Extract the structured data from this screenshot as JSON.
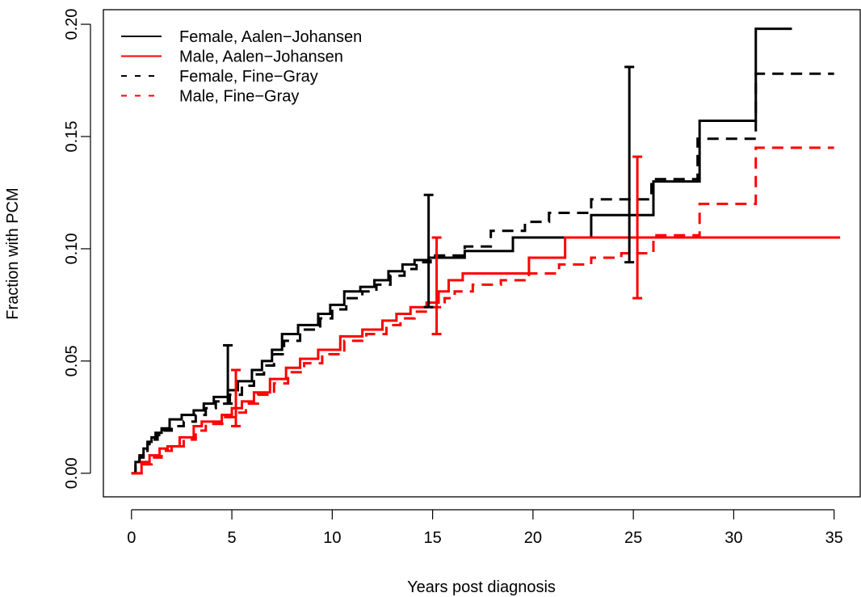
{
  "chart_data": {
    "type": "line",
    "step": true,
    "title": "",
    "xlabel": "Years post diagnosis",
    "ylabel": "Fraction with PCM",
    "xlim": [
      -1.4,
      36.3
    ],
    "ylim": [
      -0.0105,
      0.2065
    ],
    "xticks": [
      0,
      5,
      10,
      15,
      20,
      25,
      30,
      35
    ],
    "xtick_labels": [
      "0",
      "5",
      "10",
      "15",
      "20",
      "25",
      "30",
      "35"
    ],
    "yticks": [
      0,
      0.05,
      0.1,
      0.15,
      0.2
    ],
    "ytick_labels": [
      "0.00",
      "0.05",
      "0.10",
      "0.15",
      "0.20"
    ],
    "grid": false,
    "legend_position": "top-left",
    "series": [
      {
        "name": "Female, Aalen−Johansen",
        "color": "#000000",
        "dash": "solid",
        "x": [
          0,
          0.2,
          0.4,
          0.6,
          0.8,
          1.0,
          1.2,
          1.5,
          1.9,
          2.5,
          3.1,
          3.6,
          4.1,
          4.8,
          5.3,
          6.0,
          6.5,
          7.0,
          7.5,
          8.3,
          9.3,
          9.9,
          10.6,
          11.4,
          12.1,
          12.8,
          13.5,
          14.1,
          14.8,
          16.6,
          19.0,
          22.9,
          26.0,
          28.3,
          31.1,
          32.9
        ],
        "y": [
          0,
          0.005,
          0.008,
          0.011,
          0.014,
          0.016,
          0.018,
          0.02,
          0.024,
          0.026,
          0.028,
          0.031,
          0.034,
          0.037,
          0.041,
          0.046,
          0.05,
          0.055,
          0.062,
          0.066,
          0.071,
          0.075,
          0.081,
          0.083,
          0.086,
          0.09,
          0.093,
          0.095,
          0.096,
          0.099,
          0.105,
          0.115,
          0.13,
          0.157,
          0.198,
          0.198
        ]
      },
      {
        "name": "Male, Aalen−Johansen",
        "color": "#ff0000",
        "dash": "solid",
        "x": [
          0,
          0.5,
          0.9,
          1.4,
          1.8,
          2.4,
          3.1,
          3.5,
          4.5,
          5.0,
          5.5,
          6.1,
          6.9,
          7.7,
          8.4,
          9.3,
          10.4,
          11.5,
          12.5,
          13.2,
          13.9,
          14.7,
          15.3,
          15.8,
          16.5,
          19.8,
          21.6,
          35.3
        ],
        "y": [
          0,
          0.005,
          0.008,
          0.011,
          0.012,
          0.016,
          0.021,
          0.023,
          0.026,
          0.029,
          0.032,
          0.036,
          0.042,
          0.047,
          0.051,
          0.055,
          0.061,
          0.064,
          0.068,
          0.071,
          0.074,
          0.076,
          0.081,
          0.086,
          0.089,
          0.096,
          0.105,
          0.105
        ]
      },
      {
        "name": "Female, Fine−Gray",
        "color": "#000000",
        "dash": "dashed",
        "x": [
          0,
          0.2,
          0.4,
          0.6,
          0.8,
          1.0,
          1.3,
          1.6,
          2.0,
          2.6,
          3.2,
          3.7,
          4.2,
          4.9,
          5.5,
          6.1,
          6.6,
          7.1,
          7.6,
          8.4,
          9.4,
          10.0,
          10.7,
          11.5,
          12.2,
          12.9,
          13.6,
          14.2,
          14.9,
          16.6,
          17.9,
          19.6,
          20.8,
          22.9,
          25.9,
          28.2,
          31.1,
          35.0
        ],
        "y": [
          0,
          0.004,
          0.007,
          0.01,
          0.013,
          0.015,
          0.017,
          0.019,
          0.021,
          0.023,
          0.026,
          0.029,
          0.032,
          0.035,
          0.039,
          0.044,
          0.048,
          0.053,
          0.059,
          0.064,
          0.069,
          0.073,
          0.078,
          0.081,
          0.084,
          0.088,
          0.091,
          0.094,
          0.097,
          0.101,
          0.108,
          0.112,
          0.116,
          0.122,
          0.131,
          0.149,
          0.178,
          0.178
        ]
      },
      {
        "name": "Male, Fine−Gray",
        "color": "#ff0000",
        "dash": "dashed",
        "x": [
          0,
          0.5,
          1.0,
          1.5,
          2.0,
          2.6,
          3.2,
          3.7,
          4.6,
          5.2,
          5.7,
          6.3,
          7.1,
          7.8,
          8.6,
          9.5,
          10.6,
          11.7,
          12.7,
          13.4,
          14.1,
          14.9,
          15.6,
          16.1,
          17.0,
          18.4,
          19.8,
          21.3,
          22.9,
          24.4,
          26.0,
          28.3,
          31.1,
          35.0
        ],
        "y": [
          0,
          0.004,
          0.007,
          0.01,
          0.012,
          0.015,
          0.019,
          0.022,
          0.025,
          0.027,
          0.031,
          0.035,
          0.04,
          0.045,
          0.049,
          0.053,
          0.059,
          0.062,
          0.066,
          0.069,
          0.072,
          0.074,
          0.078,
          0.081,
          0.084,
          0.086,
          0.089,
          0.093,
          0.096,
          0.098,
          0.106,
          0.12,
          0.145,
          0.145
        ]
      }
    ],
    "error_bars": [
      {
        "series": "Female, Aalen−Johansen",
        "x": 4.8,
        "low": 0.031,
        "high": 0.057
      },
      {
        "series": "Male, Aalen−Johansen",
        "x": 5.2,
        "low": 0.021,
        "high": 0.046
      },
      {
        "series": "Female, Aalen−Johansen",
        "x": 14.8,
        "low": 0.074,
        "high": 0.124
      },
      {
        "series": "Male, Aalen−Johansen",
        "x": 15.2,
        "low": 0.062,
        "high": 0.105
      },
      {
        "series": "Female, Aalen−Johansen",
        "x": 24.8,
        "low": 0.094,
        "high": 0.181
      },
      {
        "series": "Male, Aalen−Johansen",
        "x": 25.2,
        "low": 0.078,
        "high": 0.141
      }
    ]
  }
}
